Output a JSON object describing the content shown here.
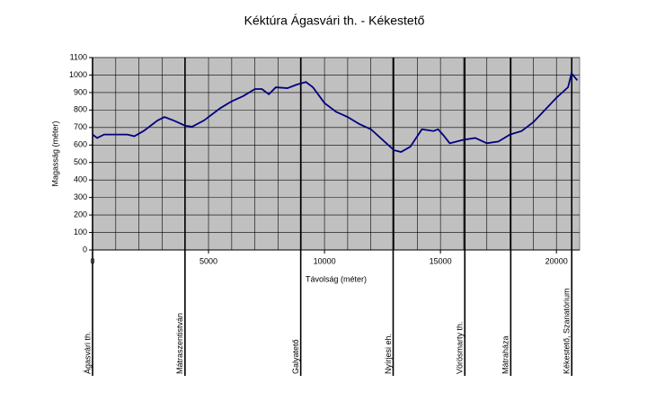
{
  "chart_data": {
    "type": "line",
    "title": "Kéktúra Ágasvári th. - Kékestető",
    "x_label": "Távolság (méter)",
    "y_label": "Magasság (méter)",
    "x": [
      0,
      200,
      500,
      1500,
      1800,
      2200,
      2800,
      3100,
      3500,
      4000,
      4300,
      4800,
      5500,
      6000,
      6500,
      7000,
      7300,
      7600,
      7900,
      8400,
      8800,
      9200,
      9500,
      10000,
      10500,
      11000,
      11500,
      12000,
      12500,
      13000,
      13300,
      13700,
      14200,
      14700,
      14900,
      15100,
      15400,
      16000,
      16500,
      17000,
      17500,
      18000,
      18500,
      19000,
      19500,
      20000,
      20500,
      20650,
      20900
    ],
    "series": [
      {
        "name": "Magasság",
        "color": "#000080",
        "values": [
          660,
          640,
          660,
          660,
          650,
          680,
          740,
          760,
          740,
          710,
          705,
          740,
          810,
          850,
          880,
          920,
          920,
          890,
          930,
          925,
          945,
          960,
          930,
          840,
          790,
          760,
          720,
          690,
          630,
          570,
          560,
          590,
          690,
          680,
          690,
          660,
          610,
          630,
          640,
          610,
          620,
          660,
          680,
          730,
          800,
          870,
          930,
          1010,
          970
        ]
      }
    ],
    "xlim": [
      0,
      21000
    ],
    "ylim": [
      0,
      1100
    ],
    "xticks": [
      0,
      5000,
      10000,
      15000,
      20000
    ],
    "yticks": [
      0,
      100,
      200,
      300,
      400,
      500,
      600,
      700,
      800,
      900,
      1000,
      1100
    ],
    "x_grid_step": 1000,
    "grid": true,
    "plot_background": "#c0c0c0",
    "waypoints": [
      {
        "x": 0,
        "label": "Ágasvári th."
      },
      {
        "x": 3985,
        "label": "Mátraszentistván"
      },
      {
        "x": 8975,
        "label": "Galyatető"
      },
      {
        "x": 12960,
        "label": "Nyírjesi eh."
      },
      {
        "x": 16050,
        "label": "Vörösmarty th."
      },
      {
        "x": 18030,
        "label": "Mátraháza"
      },
      {
        "x": 20660,
        "label": "Kékestető, Szanatórium"
      }
    ]
  }
}
